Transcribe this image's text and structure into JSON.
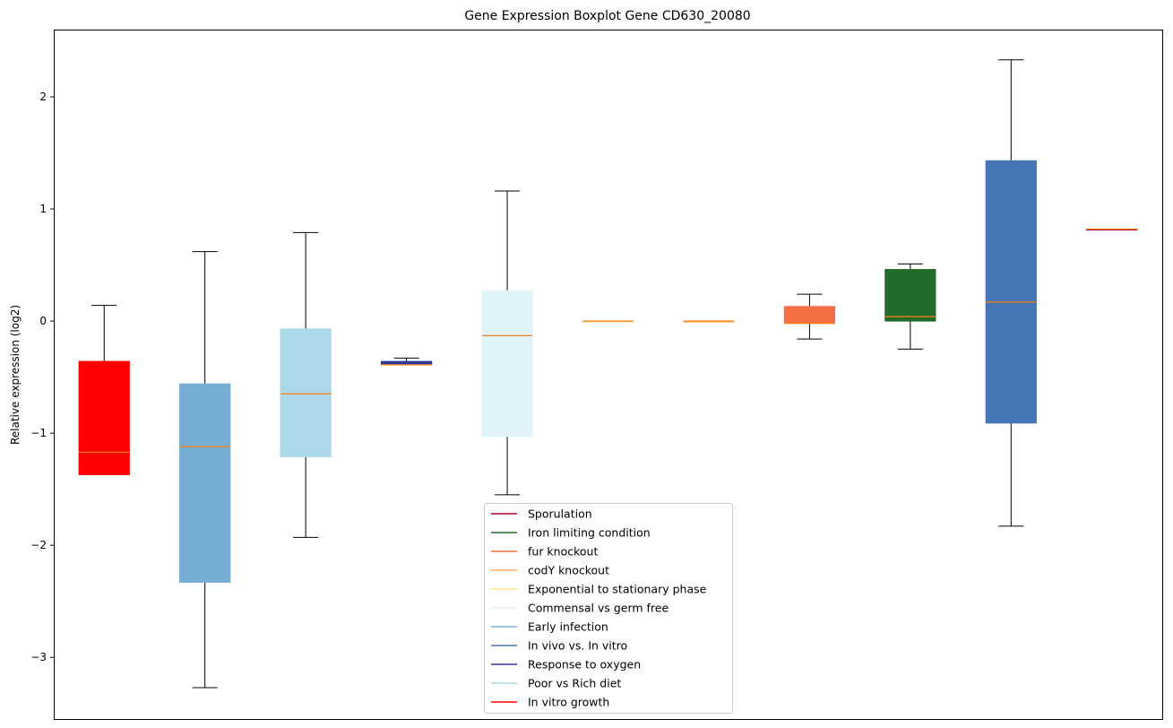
{
  "chart_data": {
    "type": "boxplot",
    "title": "Gene Expression Boxplot Gene CD630_20080",
    "xlabel": "",
    "ylabel": "Relative expression (log2)",
    "ylim": [
      -3.55,
      2.6
    ],
    "yticks": [
      -3,
      -2,
      -1,
      0,
      1,
      2
    ],
    "ytick_labels": [
      "−3",
      "−2",
      "−1",
      "0",
      "1",
      "2"
    ],
    "grid": false,
    "legend_position": "bottom-center",
    "median_color": "#ff7f0e",
    "boxes": [
      {
        "name": "In vitro growth",
        "color": "#ff0000",
        "whislo": -1.37,
        "q1": -1.37,
        "med": -1.17,
        "q3": -0.36,
        "whishi": 0.14
      },
      {
        "name": "Early infection",
        "color": "#76add3",
        "whislo": -3.27,
        "q1": -2.33,
        "med": -1.12,
        "q3": -0.56,
        "whishi": 0.62
      },
      {
        "name": "Poor vs Rich diet",
        "color": "#abd9e9",
        "whislo": -1.93,
        "q1": -1.21,
        "med": -0.65,
        "q3": -0.07,
        "whishi": 0.79
      },
      {
        "name": "Response to oxygen",
        "color": "#313695",
        "whislo": -0.39,
        "q1": -0.39,
        "med": -0.39,
        "q3": -0.36,
        "whishi": -0.33
      },
      {
        "name": "Commensal vs germ free",
        "color": "#e0f3f8",
        "whislo": -1.55,
        "q1": -1.03,
        "med": -0.13,
        "q3": 0.27,
        "whishi": 1.16
      },
      {
        "name": "Exponential to stationary phase",
        "color": "#fee090",
        "whislo": 0.0,
        "q1": 0.0,
        "med": 0.0,
        "q3": 0.0,
        "whishi": 0.0
      },
      {
        "name": "codY knockout",
        "color": "#fdae61",
        "whislo": 0.0,
        "q1": 0.0,
        "med": 0.0,
        "q3": 0.0,
        "whishi": 0.0
      },
      {
        "name": "fur knockout",
        "color": "#f46d43",
        "whislo": -0.16,
        "q1": -0.02,
        "med": -0.02,
        "q3": 0.13,
        "whishi": 0.24
      },
      {
        "name": "Iron limiting condition",
        "color": "#236b2b",
        "whislo": -0.25,
        "q1": 0.0,
        "med": 0.04,
        "q3": 0.46,
        "whishi": 0.51
      },
      {
        "name": "In vivo vs. In vitro",
        "color": "#4575b4",
        "whislo": -1.83,
        "q1": -0.91,
        "med": 0.17,
        "q3": 1.43,
        "whishi": 2.33
      },
      {
        "name": "Sporulation",
        "color": "#a50026",
        "whislo": 0.82,
        "q1": 0.82,
        "med": 0.82,
        "q3": 0.82,
        "whishi": 0.82
      }
    ],
    "legend": [
      {
        "label": "Sporulation",
        "color": "#a50026"
      },
      {
        "label": "Iron limiting condition",
        "color": "#236b2b"
      },
      {
        "label": "fur knockout",
        "color": "#f46d43"
      },
      {
        "label": "codY knockout",
        "color": "#fdae61"
      },
      {
        "label": "Exponential to stationary phase",
        "color": "#fee090"
      },
      {
        "label": "Commensal vs germ free",
        "color": "#e0f3f8"
      },
      {
        "label": "Early infection",
        "color": "#76add3"
      },
      {
        "label": "In vivo vs. In vitro",
        "color": "#4575b4"
      },
      {
        "label": "Response to oxygen",
        "color": "#313695"
      },
      {
        "label": "Poor vs Rich diet",
        "color": "#abd9e9"
      },
      {
        "label": "In vitro growth",
        "color": "#ff0000"
      }
    ]
  }
}
